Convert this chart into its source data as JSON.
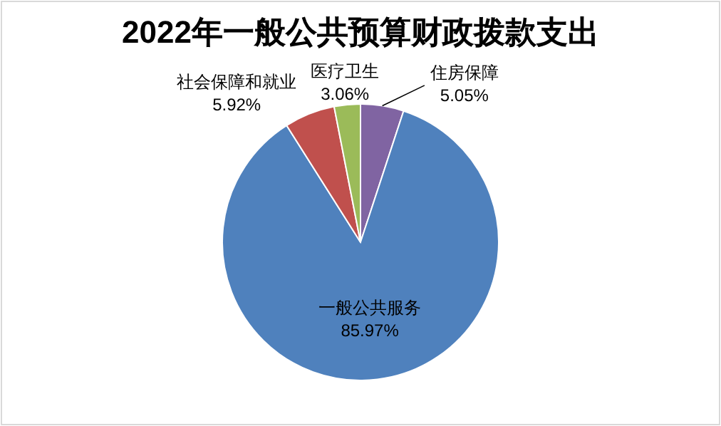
{
  "chart_data": {
    "type": "pie",
    "title": "2022年一般公共预算财政拨款支出",
    "categories": [
      "住房保障",
      "一般公共服务",
      "社会保障和就业",
      "医疗卫生"
    ],
    "values": [
      5.05,
      85.97,
      5.92,
      3.06
    ],
    "colors": [
      "#8064a2",
      "#4f81bd",
      "#c0504d",
      "#9bbb59"
    ],
    "value_labels": [
      "5.05%",
      "85.97%",
      "5.92%",
      "3.06%"
    ]
  }
}
